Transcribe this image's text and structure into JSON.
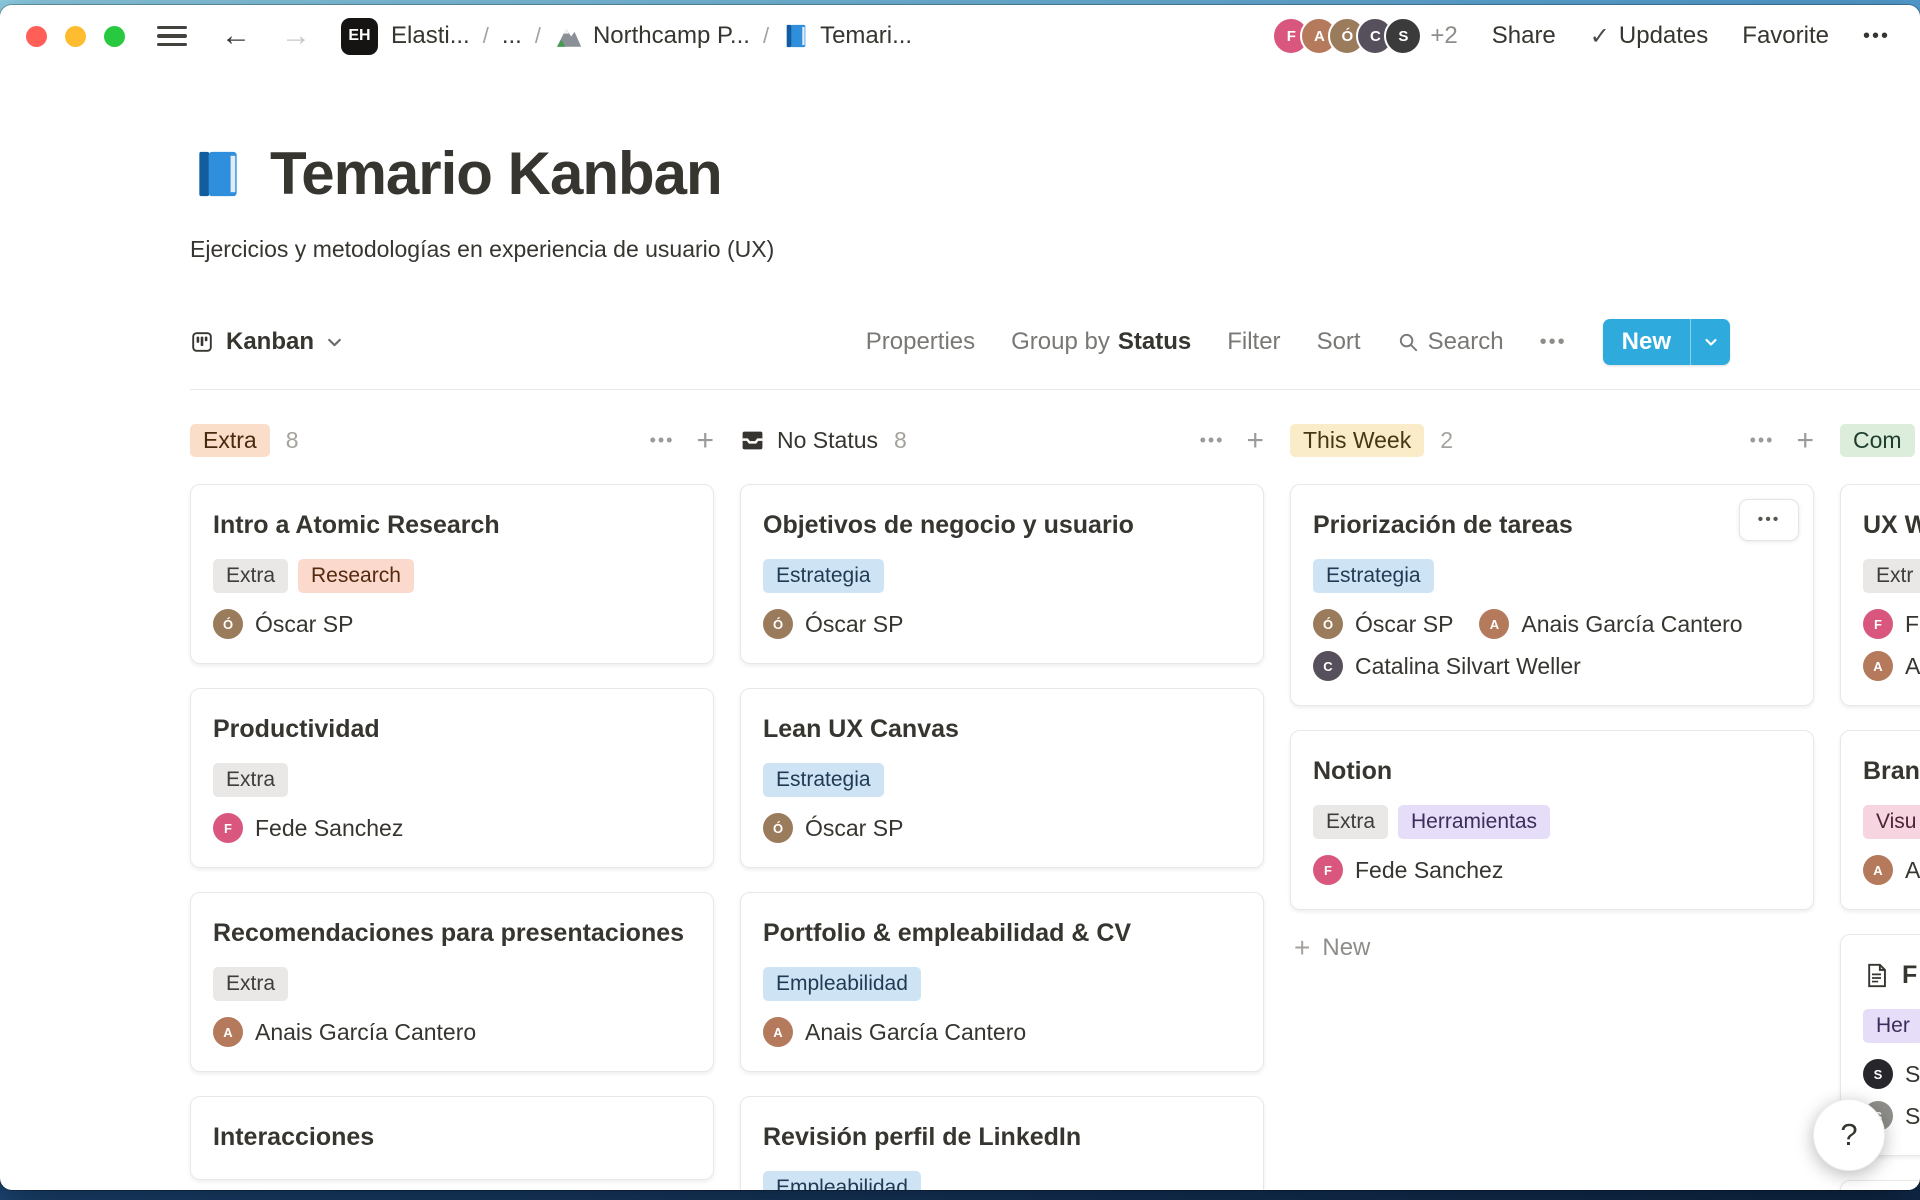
{
  "colors": {
    "accent": "#2eaadc"
  },
  "titlebar": {
    "breadcrumb_badge": "EH",
    "breadcrumb": [
      {
        "label": "Elasti..."
      },
      {
        "label": "..."
      },
      {
        "label": "Northcamp P..."
      },
      {
        "label": "Temari..."
      }
    ],
    "separator": "/",
    "back": "←",
    "forward": "→",
    "avatars": [
      {
        "initial": "F",
        "bg": "#d9577e"
      },
      {
        "initial": "A",
        "bg": "#b5795c"
      },
      {
        "initial": "Ó",
        "bg": "#9a7b5c"
      },
      {
        "initial": "C",
        "bg": "#56505c"
      },
      {
        "initial": "S",
        "bg": "#3b3b3b"
      }
    ],
    "overflow_count": "+2",
    "share": "Share",
    "updates_check": "✓",
    "updates": "Updates",
    "favorite": "Favorite",
    "more": "•••"
  },
  "page": {
    "title": "Temario Kanban",
    "subtitle": "Ejercicios y metodologías en experiencia de usuario (UX)"
  },
  "toolbar": {
    "view_label": "Kanban",
    "properties": "Properties",
    "group_by_prefix": "Group by",
    "group_by_value": "Status",
    "filter": "Filter",
    "sort": "Sort",
    "search": "Search",
    "more": "•••",
    "new_label": "New"
  },
  "board": {
    "header_more": "•••",
    "header_add": "+",
    "card_menu": "•••",
    "new_plus": "+",
    "new_card_label": "New",
    "columns": [
      {
        "header": {
          "label": "Extra",
          "pill": "orange",
          "count": "8"
        },
        "cards": [
          {
            "title": "Intro a Atomic Research",
            "tags": [
              {
                "label": "Extra",
                "color": "gray"
              },
              {
                "label": "Research",
                "color": "red"
              }
            ],
            "assignee_rows": [
              [
                {
                  "name": "Óscar SP",
                  "initial": "Ó",
                  "bg": "#9a7b5c"
                }
              ]
            ]
          },
          {
            "title": "Productividad",
            "tags": [
              {
                "label": "Extra",
                "color": "gray"
              }
            ],
            "assignee_rows": [
              [
                {
                  "name": "Fede Sanchez",
                  "initial": "F",
                  "bg": "#d9577e"
                }
              ]
            ]
          },
          {
            "title": "Recomendaciones para presentaciones",
            "tags": [
              {
                "label": "Extra",
                "color": "gray"
              }
            ],
            "assignee_rows": [
              [
                {
                  "name": "Anais García Cantero",
                  "initial": "A",
                  "bg": "#b5795c"
                }
              ]
            ]
          },
          {
            "title": "Interacciones",
            "tags": [],
            "assignee_rows": []
          }
        ]
      },
      {
        "header": {
          "label": "No Status",
          "pill": null,
          "icon": "tray",
          "count": "8"
        },
        "cards": [
          {
            "title": "Objetivos de negocio y usuario",
            "tags": [
              {
                "label": "Estrategia",
                "color": "blue"
              }
            ],
            "assignee_rows": [
              [
                {
                  "name": "Óscar SP",
                  "initial": "Ó",
                  "bg": "#9a7b5c"
                }
              ]
            ]
          },
          {
            "title": "Lean UX Canvas",
            "tags": [
              {
                "label": "Estrategia",
                "color": "blue"
              }
            ],
            "assignee_rows": [
              [
                {
                  "name": "Óscar SP",
                  "initial": "Ó",
                  "bg": "#9a7b5c"
                }
              ]
            ]
          },
          {
            "title": "Portfolio & empleabilidad & CV",
            "tags": [
              {
                "label": "Empleabilidad",
                "color": "blue"
              }
            ],
            "assignee_rows": [
              [
                {
                  "name": "Anais García Cantero",
                  "initial": "A",
                  "bg": "#b5795c"
                }
              ]
            ]
          },
          {
            "title": "Revisión perfil de LinkedIn",
            "tags": [
              {
                "label": "Empleabilidad",
                "color": "blue"
              }
            ],
            "assignee_rows": []
          }
        ]
      },
      {
        "header": {
          "label": "This Week",
          "pill": "yellow",
          "count": "2"
        },
        "footer_new": true,
        "cards": [
          {
            "title": "Priorización de tareas",
            "menu": true,
            "tags": [
              {
                "label": "Estrategia",
                "color": "blue"
              }
            ],
            "assignee_rows": [
              [
                {
                  "name": "Óscar SP",
                  "initial": "Ó",
                  "bg": "#9a7b5c"
                },
                {
                  "name": "Anais García Cantero",
                  "initial": "A",
                  "bg": "#b5795c"
                }
              ],
              [
                {
                  "name": "Catalina Silvart Weller",
                  "initial": "C",
                  "bg": "#56505c"
                }
              ]
            ]
          },
          {
            "title": "Notion",
            "tags": [
              {
                "label": "Extra",
                "color": "gray"
              },
              {
                "label": "Herramientas",
                "color": "purple"
              }
            ],
            "assignee_rows": [
              [
                {
                  "name": "Fede Sanchez",
                  "initial": "F",
                  "bg": "#d9577e"
                }
              ]
            ]
          }
        ]
      },
      {
        "header": {
          "label": "Com",
          "pill": "green",
          "count": ""
        },
        "cards": [
          {
            "title": "UX W",
            "tags": [
              {
                "label": "Extr",
                "color": "gray"
              }
            ],
            "assignee_rows": [
              [
                {
                  "name": "F",
                  "initial": "F",
                  "bg": "#d9577e"
                }
              ],
              [
                {
                  "name": "A",
                  "initial": "A",
                  "bg": "#b5795c"
                }
              ]
            ]
          },
          {
            "title": "Bran",
            "tags": [
              {
                "label": "Visu",
                "color": "pink"
              }
            ],
            "assignee_rows": [
              [
                {
                  "name": "A",
                  "initial": "A",
                  "bg": "#b5795c"
                }
              ]
            ]
          },
          {
            "title": "F",
            "title_icon": "doc",
            "tags": [
              {
                "label": "Her",
                "color": "purple"
              }
            ],
            "assignee_rows": [
              [
                {
                  "name": "S",
                  "initial": "S",
                  "bg": "#26262b"
                }
              ],
              [
                {
                  "name": "S",
                  "initial": "S",
                  "bg": "#8f8e8a"
                }
              ]
            ]
          },
          {
            "title": "",
            "tags": [],
            "assignee_rows": []
          }
        ]
      }
    ]
  },
  "help_label": "?"
}
